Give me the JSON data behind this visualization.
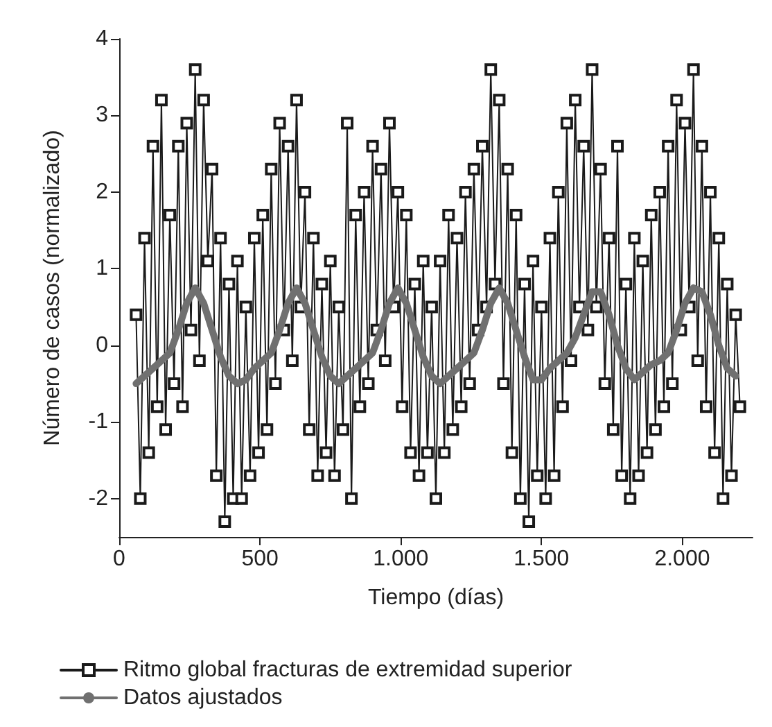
{
  "chart_data": {
    "type": "line",
    "xlabel": "Tiempo (días)",
    "ylabel": "Número de casos (normalizado)",
    "xlim": [
      0,
      2250
    ],
    "xticks": [
      0,
      500,
      {
        "value": 1000,
        "label": "1.000"
      },
      {
        "value": 1500,
        "label": "1.500"
      },
      {
        "value": 2000,
        "label": "2.000"
      }
    ],
    "ylim": [
      -2.5,
      4
    ],
    "yticks": [
      -2,
      -1,
      0,
      1,
      2,
      3,
      4
    ],
    "grid": false,
    "legend": "bottom",
    "line_style": "solid",
    "series": [
      {
        "name": "Ritmo global fracturas de extremidad superior",
        "color": "#1a1a1a",
        "marker": "square",
        "x": [
          60,
          75,
          90,
          105,
          120,
          135,
          150,
          165,
          180,
          195,
          210,
          225,
          240,
          255,
          270,
          285,
          300,
          315,
          330,
          345,
          360,
          375,
          390,
          405,
          420,
          435,
          450,
          465,
          480,
          495,
          510,
          525,
          540,
          555,
          570,
          585,
          600,
          615,
          630,
          645,
          660,
          675,
          690,
          705,
          720,
          735,
          750,
          765,
          780,
          795,
          810,
          825,
          840,
          855,
          870,
          885,
          900,
          915,
          930,
          945,
          960,
          975,
          990,
          1005,
          1020,
          1035,
          1050,
          1065,
          1080,
          1095,
          1110,
          1125,
          1140,
          1155,
          1170,
          1185,
          1200,
          1215,
          1230,
          1245,
          1260,
          1275,
          1290,
          1305,
          1320,
          1335,
          1350,
          1365,
          1380,
          1395,
          1410,
          1425,
          1440,
          1455,
          1470,
          1485,
          1500,
          1515,
          1530,
          1545,
          1560,
          1575,
          1590,
          1605,
          1620,
          1635,
          1650,
          1665,
          1680,
          1695,
          1710,
          1725,
          1740,
          1755,
          1770,
          1785,
          1800,
          1815,
          1830,
          1845,
          1860,
          1875,
          1890,
          1905,
          1920,
          1935,
          1950,
          1965,
          1980,
          1995,
          2010,
          2025,
          2040,
          2055,
          2070,
          2085,
          2100,
          2115,
          2130,
          2145,
          2160,
          2175,
          2190,
          2205
        ],
        "values": [
          0.4,
          -2.0,
          1.4,
          -1.4,
          2.6,
          -0.8,
          3.2,
          -1.1,
          1.7,
          -0.5,
          2.6,
          -0.8,
          2.9,
          0.2,
          3.6,
          -0.2,
          3.2,
          1.1,
          2.3,
          -1.7,
          1.4,
          -2.3,
          0.8,
          -2.0,
          1.1,
          -2.0,
          0.5,
          -1.7,
          1.4,
          -1.4,
          1.7,
          -1.1,
          2.3,
          -0.5,
          2.9,
          0.2,
          2.6,
          -0.2,
          3.2,
          0.5,
          2.0,
          -1.1,
          1.4,
          -1.7,
          0.8,
          -1.4,
          1.1,
          -1.7,
          0.5,
          -1.1,
          2.9,
          -2.0,
          1.7,
          -0.8,
          2.0,
          -0.5,
          2.6,
          0.2,
          2.3,
          -0.2,
          2.9,
          0.5,
          2.0,
          -0.8,
          1.7,
          -1.4,
          0.8,
          -1.7,
          1.1,
          -1.4,
          0.5,
          -2.0,
          1.1,
          -1.4,
          1.7,
          -1.1,
          1.4,
          -0.8,
          2.0,
          -0.5,
          2.3,
          0.2,
          2.6,
          0.5,
          3.6,
          0.8,
          3.2,
          -0.5,
          2.3,
          -1.4,
          1.7,
          -2.0,
          0.8,
          -2.3,
          1.1,
          -1.7,
          0.5,
          -2.0,
          1.4,
          -1.7,
          2.0,
          -0.8,
          2.9,
          -0.2,
          3.2,
          0.5,
          2.6,
          0.2,
          3.6,
          0.5,
          2.3,
          -0.5,
          1.4,
          -1.1,
          2.6,
          -1.7,
          0.8,
          -2.0,
          1.4,
          -1.7,
          1.1,
          -1.4,
          1.7,
          -1.1,
          2.0,
          -0.8,
          2.6,
          -0.5,
          3.2,
          0.2,
          2.9,
          0.5,
          3.6,
          -0.2,
          2.6,
          -0.8,
          2.0,
          -1.4,
          1.4,
          -2.0,
          0.8,
          -1.7,
          0.4,
          -0.8
        ]
      },
      {
        "name": "Datos ajustados",
        "color": "#707070",
        "marker": "none",
        "x": [
          60,
          90,
          120,
          150,
          180,
          210,
          240,
          270,
          300,
          330,
          360,
          390,
          420,
          450,
          480,
          510,
          540,
          570,
          600,
          630,
          660,
          690,
          720,
          750,
          780,
          810,
          840,
          870,
          900,
          930,
          960,
          990,
          1020,
          1050,
          1080,
          1110,
          1140,
          1170,
          1200,
          1230,
          1260,
          1290,
          1320,
          1350,
          1380,
          1410,
          1440,
          1470,
          1500,
          1530,
          1560,
          1590,
          1620,
          1650,
          1680,
          1710,
          1740,
          1770,
          1800,
          1830,
          1860,
          1890,
          1920,
          1950,
          1980,
          2010,
          2040,
          2070,
          2100,
          2130,
          2160,
          2190
        ],
        "values": [
          -0.5,
          -0.4,
          -0.3,
          -0.2,
          -0.1,
          0.2,
          0.55,
          0.75,
          0.55,
          0.2,
          -0.15,
          -0.4,
          -0.5,
          -0.45,
          -0.3,
          -0.2,
          -0.1,
          0.2,
          0.55,
          0.75,
          0.55,
          0.2,
          -0.15,
          -0.4,
          -0.5,
          -0.4,
          -0.3,
          -0.2,
          -0.1,
          0.2,
          0.55,
          0.75,
          0.55,
          0.2,
          -0.15,
          -0.4,
          -0.5,
          -0.4,
          -0.3,
          -0.2,
          -0.1,
          0.2,
          0.55,
          0.75,
          0.55,
          0.2,
          -0.15,
          -0.45,
          -0.45,
          -0.3,
          -0.2,
          -0.1,
          0.1,
          0.4,
          0.7,
          0.7,
          0.4,
          0.0,
          -0.3,
          -0.45,
          -0.35,
          -0.25,
          -0.2,
          -0.1,
          0.2,
          0.55,
          0.75,
          0.7,
          0.4,
          0.0,
          -0.3,
          -0.4
        ]
      }
    ]
  }
}
